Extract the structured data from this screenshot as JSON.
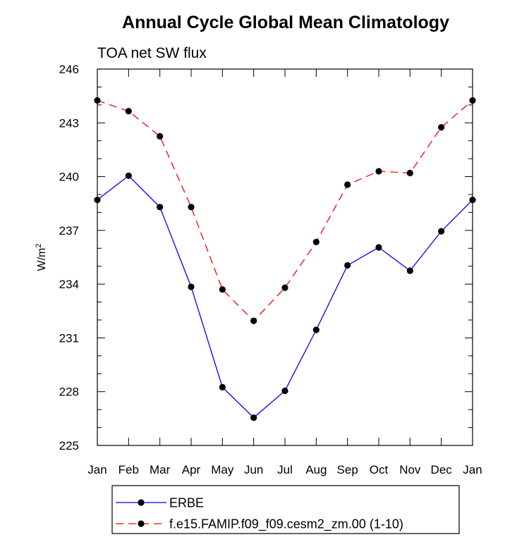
{
  "chart_data": {
    "type": "line",
    "title": "Annual Cycle Global Mean Climatology",
    "subtitle": "TOA net SW flux",
    "xlabel": "",
    "ylabel": "W/m",
    "ylabel_superscript": "2",
    "categories": [
      "Jan",
      "Feb",
      "Mar",
      "Apr",
      "May",
      "Jun",
      "Jul",
      "Aug",
      "Sep",
      "Oct",
      "Nov",
      "Dec",
      "Jan"
    ],
    "yticks": [
      "225",
      "228",
      "231",
      "234",
      "237",
      "240",
      "243",
      "246"
    ],
    "ylim": [
      225,
      246
    ],
    "grid": false,
    "legend_position": "bottom",
    "series": [
      {
        "name": "ERBE",
        "color": "#0000ff",
        "dash": "solid",
        "values": [
          238.7,
          240.05,
          238.3,
          233.85,
          228.25,
          226.55,
          228.05,
          231.45,
          235.05,
          236.05,
          234.75,
          236.95,
          238.7
        ]
      },
      {
        "name": "f.e15.FAMIP.f09_f09.cesm2_zm.00 (1-10)",
        "color": "#ff0000",
        "dash": "dashed",
        "values": [
          244.25,
          243.65,
          242.25,
          238.3,
          233.7,
          231.95,
          233.8,
          236.35,
          239.55,
          240.3,
          240.2,
          242.75,
          244.25
        ]
      }
    ]
  }
}
